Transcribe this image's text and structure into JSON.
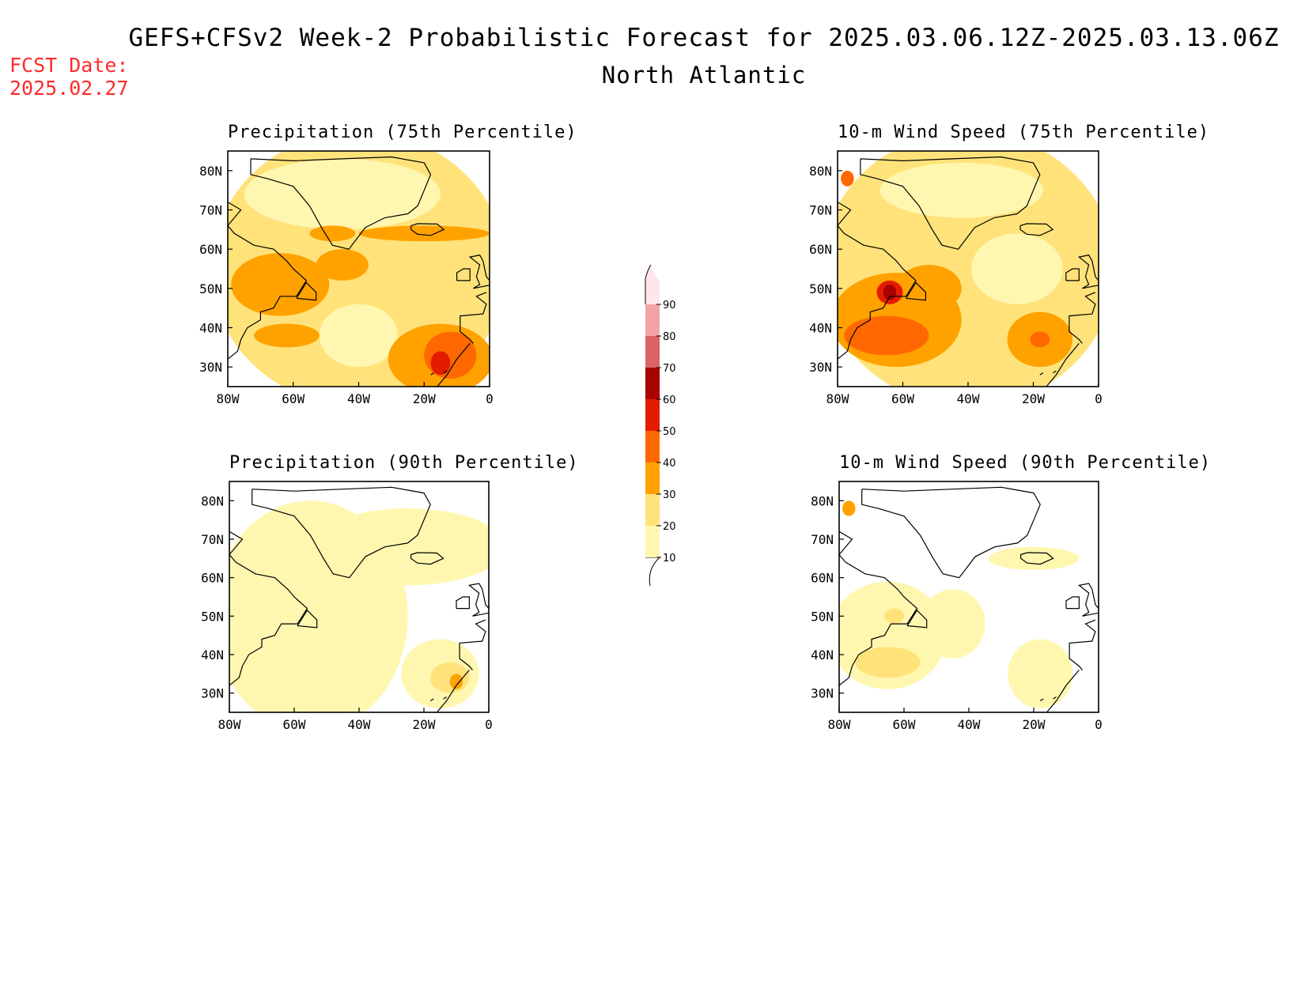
{
  "title": "GEFS+CFSv2 Week-2 Probabilistic Forecast for 2025.03.06.12Z-2025.03.13.06Z",
  "subtitle": "North Atlantic",
  "fcst_date_label": "FCST Date:",
  "fcst_date": "2025.02.27",
  "map": {
    "lat_range": [
      25,
      85
    ],
    "lon_range": [
      -80,
      0
    ],
    "lat_ticks": [
      "80N",
      "70N",
      "60N",
      "50N",
      "40N",
      "30N"
    ],
    "lon_ticks": [
      "80W",
      "60W",
      "40W",
      "20W",
      "0"
    ]
  },
  "colorbar": {
    "levels": [
      "10",
      "20",
      "30",
      "40",
      "50",
      "60",
      "70",
      "80",
      "90"
    ],
    "colors": [
      "#fff7b0",
      "#ffe37a",
      "#ffa200",
      "#ff6800",
      "#e31c00",
      "#a90000",
      "#db6464",
      "#f3a3a3",
      "#ffe6ea"
    ]
  },
  "panels": [
    {
      "id": "precip-75",
      "title": "Precipitation (75th Percentile)",
      "blobs": [
        {
          "lon": -40,
          "lat": 55,
          "rx": 45,
          "ry": 35,
          "level": 1
        },
        {
          "lon": -45,
          "lat": 74,
          "rx": 30,
          "ry": 9,
          "level": 0
        },
        {
          "lon": -40,
          "lat": 38,
          "rx": 12,
          "ry": 8,
          "level": 0
        },
        {
          "lon": -64,
          "lat": 51,
          "rx": 15,
          "ry": 8,
          "level": 2
        },
        {
          "lon": -45,
          "lat": 56,
          "rx": 8,
          "ry": 4,
          "level": 2
        },
        {
          "lon": -20,
          "lat": 64,
          "rx": 20,
          "ry": 2,
          "level": 2
        },
        {
          "lon": -48,
          "lat": 64,
          "rx": 7,
          "ry": 2,
          "level": 2
        },
        {
          "lon": -62,
          "lat": 38,
          "rx": 10,
          "ry": 3,
          "level": 2
        },
        {
          "lon": -15,
          "lat": 32,
          "rx": 16,
          "ry": 9,
          "level": 2
        },
        {
          "lon": -12,
          "lat": 33,
          "rx": 8,
          "ry": 6,
          "level": 3
        },
        {
          "lon": -15,
          "lat": 31,
          "rx": 3,
          "ry": 3,
          "level": 4
        }
      ]
    },
    {
      "id": "wind-75",
      "title": "10-m Wind Speed (75th Percentile)",
      "blobs": [
        {
          "lon": -40,
          "lat": 55,
          "rx": 45,
          "ry": 35,
          "level": 1
        },
        {
          "lon": -42,
          "lat": 75,
          "rx": 25,
          "ry": 7,
          "level": 0
        },
        {
          "lon": -25,
          "lat": 55,
          "rx": 14,
          "ry": 9,
          "level": 0
        },
        {
          "lon": -62,
          "lat": 42,
          "rx": 20,
          "ry": 12,
          "level": 2
        },
        {
          "lon": -52,
          "lat": 50,
          "rx": 10,
          "ry": 6,
          "level": 2
        },
        {
          "lon": -18,
          "lat": 37,
          "rx": 10,
          "ry": 7,
          "level": 2
        },
        {
          "lon": -65,
          "lat": 38,
          "rx": 13,
          "ry": 5,
          "level": 3
        },
        {
          "lon": -64,
          "lat": 49,
          "rx": 4,
          "ry": 3,
          "level": 4
        },
        {
          "lon": -64,
          "lat": 49,
          "rx": 2,
          "ry": 2,
          "level": 5
        },
        {
          "lon": -77,
          "lat": 78,
          "rx": 2,
          "ry": 2,
          "level": 3
        },
        {
          "lon": -18,
          "lat": 37,
          "rx": 3,
          "ry": 2,
          "level": 3
        }
      ]
    },
    {
      "id": "precip-90",
      "title": "Precipitation (90th Percentile)",
      "blobs": [
        {
          "lon": -55,
          "lat": 50,
          "rx": 30,
          "ry": 30,
          "level": 0
        },
        {
          "lon": -25,
          "lat": 68,
          "rx": 30,
          "ry": 10,
          "level": 0
        },
        {
          "lon": -15,
          "lat": 35,
          "rx": 12,
          "ry": 9,
          "level": 0
        },
        {
          "lon": -12,
          "lat": 34,
          "rx": 6,
          "ry": 4,
          "level": 1
        },
        {
          "lon": -10,
          "lat": 33,
          "rx": 2,
          "ry": 2,
          "level": 2
        }
      ]
    },
    {
      "id": "wind-90",
      "title": "10-m Wind Speed (90th Percentile)",
      "blobs": [
        {
          "lon": -65,
          "lat": 45,
          "rx": 18,
          "ry": 14,
          "level": 0
        },
        {
          "lon": -45,
          "lat": 48,
          "rx": 10,
          "ry": 9,
          "level": 0
        },
        {
          "lon": -18,
          "lat": 35,
          "rx": 10,
          "ry": 9,
          "level": 0
        },
        {
          "lon": -20,
          "lat": 65,
          "rx": 14,
          "ry": 3,
          "level": 0
        },
        {
          "lon": -65,
          "lat": 38,
          "rx": 10,
          "ry": 4,
          "level": 1
        },
        {
          "lon": -63,
          "lat": 50,
          "rx": 3,
          "ry": 2,
          "level": 1
        },
        {
          "lon": -77,
          "lat": 78,
          "rx": 2,
          "ry": 2,
          "level": 2
        }
      ]
    }
  ]
}
